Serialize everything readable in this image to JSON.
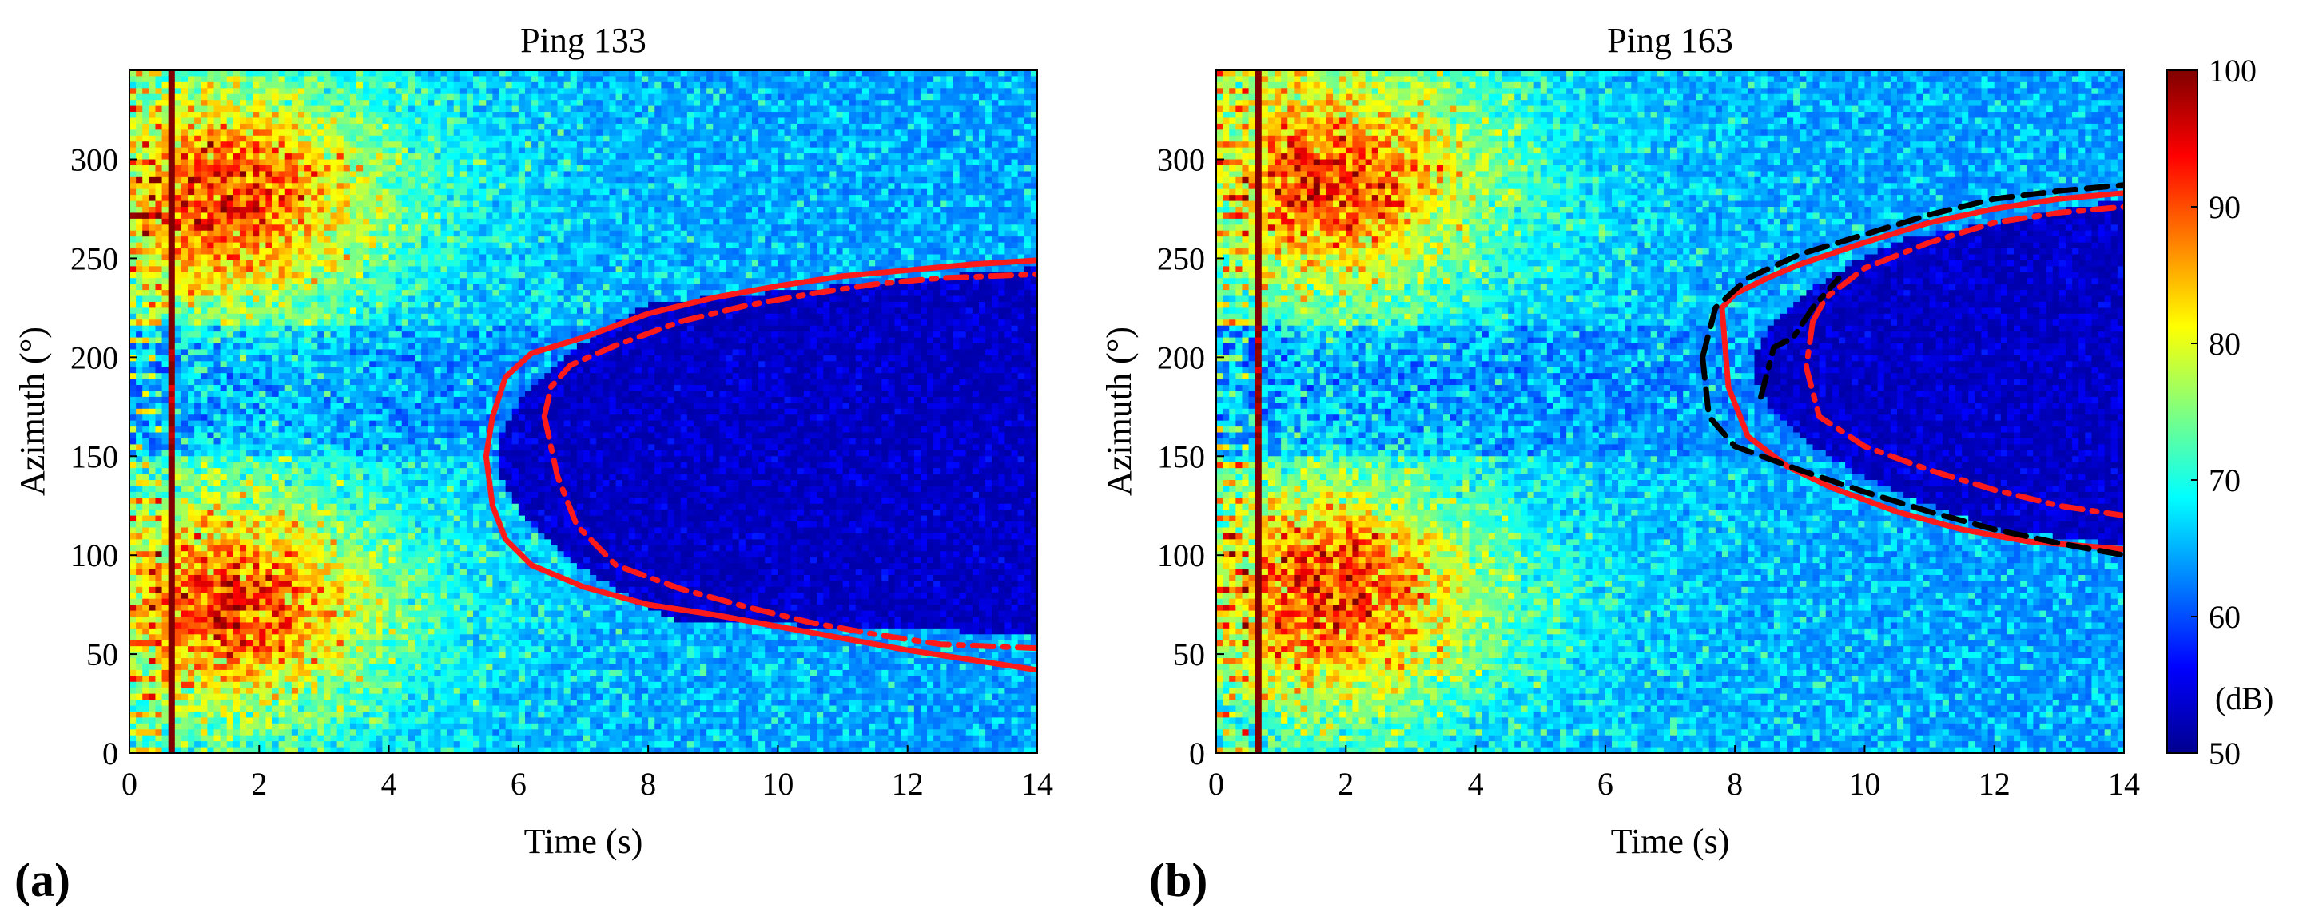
{
  "chart_data": [
    {
      "type": "heatmap",
      "panel_label": "(a)",
      "title": "Ping 133",
      "xlabel": "Time (s)",
      "ylabel": "Azimuth (°)",
      "xlim": [
        0,
        14
      ],
      "ylim": [
        0,
        345
      ],
      "xticks": [
        "0",
        "2",
        "4",
        "6",
        "8",
        "10",
        "12",
        "14"
      ],
      "yticks": [
        "0",
        "50",
        "100",
        "150",
        "200",
        "250",
        "300"
      ],
      "series": [
        {
          "name": "solid boundary (upper)",
          "color": "#ff1a1a",
          "style": "solid",
          "x": [
            5.5,
            5.6,
            5.8,
            6.2,
            7,
            8,
            9,
            10,
            11,
            12,
            13,
            14
          ],
          "y": [
            150,
            170,
            190,
            202,
            210,
            222,
            230,
            236,
            241,
            244,
            247,
            249
          ]
        },
        {
          "name": "solid boundary (lower)",
          "color": "#ff1a1a",
          "style": "solid",
          "x": [
            5.5,
            5.6,
            5.8,
            6.2,
            7,
            8,
            9,
            10,
            11,
            12,
            13,
            14
          ],
          "y": [
            150,
            125,
            108,
            95,
            84,
            75,
            70,
            64,
            58,
            52,
            47,
            42
          ]
        },
        {
          "name": "dash-dot boundary (upper)",
          "color": "#ff1a1a",
          "style": "dashdot",
          "x": [
            6.4,
            6.5,
            6.8,
            7.5,
            8.5,
            9.5,
            10.5,
            11.5,
            12.5,
            14
          ],
          "y": [
            170,
            185,
            196,
            206,
            218,
            226,
            232,
            237,
            240,
            242
          ]
        },
        {
          "name": "dash-dot boundary (lower)",
          "color": "#ff1a1a",
          "style": "dashdot",
          "x": [
            6.4,
            6.6,
            6.9,
            7.5,
            8.5,
            9.5,
            10.5,
            11.5,
            12.5,
            14
          ],
          "y": [
            170,
            140,
            115,
            95,
            83,
            74,
            66,
            60,
            55,
            53
          ]
        }
      ]
    },
    {
      "type": "heatmap",
      "panel_label": "(b)",
      "title": "Ping 163",
      "xlabel": "Time (s)",
      "ylabel": "Azimuth (°)",
      "xlim": [
        0,
        14
      ],
      "ylim": [
        0,
        345
      ],
      "xticks": [
        "0",
        "2",
        "4",
        "6",
        "8",
        "10",
        "12",
        "14"
      ],
      "yticks": [
        "0",
        "50",
        "100",
        "150",
        "200",
        "250",
        "300"
      ],
      "series": [
        {
          "name": "solid boundary (upper)",
          "color": "#ff1a1a",
          "style": "solid",
          "x": [
            7.8,
            8,
            8.5,
            9,
            10,
            11,
            12,
            13,
            14
          ],
          "y": [
            225,
            232,
            240,
            247,
            258,
            268,
            275,
            280,
            283
          ]
        },
        {
          "name": "solid boundary (lower)",
          "color": "#ff1a1a",
          "style": "solid",
          "x": [
            7.8,
            7.9,
            8.2,
            8.8,
            9.5,
            10.5,
            11.5,
            12.5,
            14
          ],
          "y": [
            225,
            185,
            160,
            145,
            134,
            122,
            113,
            107,
            103
          ]
        },
        {
          "name": "dash-dot boundary (upper)",
          "color": "#ff1a1a",
          "style": "dashdot",
          "x": [
            9.2,
            9.4,
            10,
            11,
            12,
            13,
            14
          ],
          "y": [
            218,
            230,
            245,
            258,
            268,
            273,
            276
          ]
        },
        {
          "name": "dash-dot boundary (lower)",
          "color": "#ff1a1a",
          "style": "dashdot",
          "x": [
            9.2,
            9.1,
            9.3,
            10,
            11,
            12,
            13,
            14
          ],
          "y": [
            218,
            195,
            170,
            155,
            143,
            133,
            125,
            120
          ]
        },
        {
          "name": "black dashed boundary (upper)",
          "color": "#000000",
          "style": "dashed",
          "x": [
            7.5,
            7.7,
            8.2,
            9,
            10,
            11,
            12,
            13,
            14
          ],
          "y": [
            200,
            225,
            240,
            252,
            262,
            272,
            280,
            284,
            287
          ]
        },
        {
          "name": "black dashed boundary (lower)",
          "color": "#000000",
          "style": "dashed",
          "x": [
            7.5,
            7.6,
            8,
            9,
            10,
            11,
            12,
            13,
            14
          ],
          "y": [
            200,
            170,
            155,
            143,
            132,
            122,
            113,
            106,
            100
          ]
        },
        {
          "name": "black dash-dot boundary",
          "color": "#000000",
          "style": "dashdot",
          "x": [
            8.4,
            8.6,
            8.9,
            9.2,
            9.6
          ],
          "y": [
            180,
            205,
            210,
            225,
            240
          ]
        }
      ]
    }
  ],
  "colorbar": {
    "range": [
      50,
      100
    ],
    "ticks": [
      "50",
      "60",
      "70",
      "80",
      "90",
      "100"
    ],
    "unit": "(dB)"
  }
}
